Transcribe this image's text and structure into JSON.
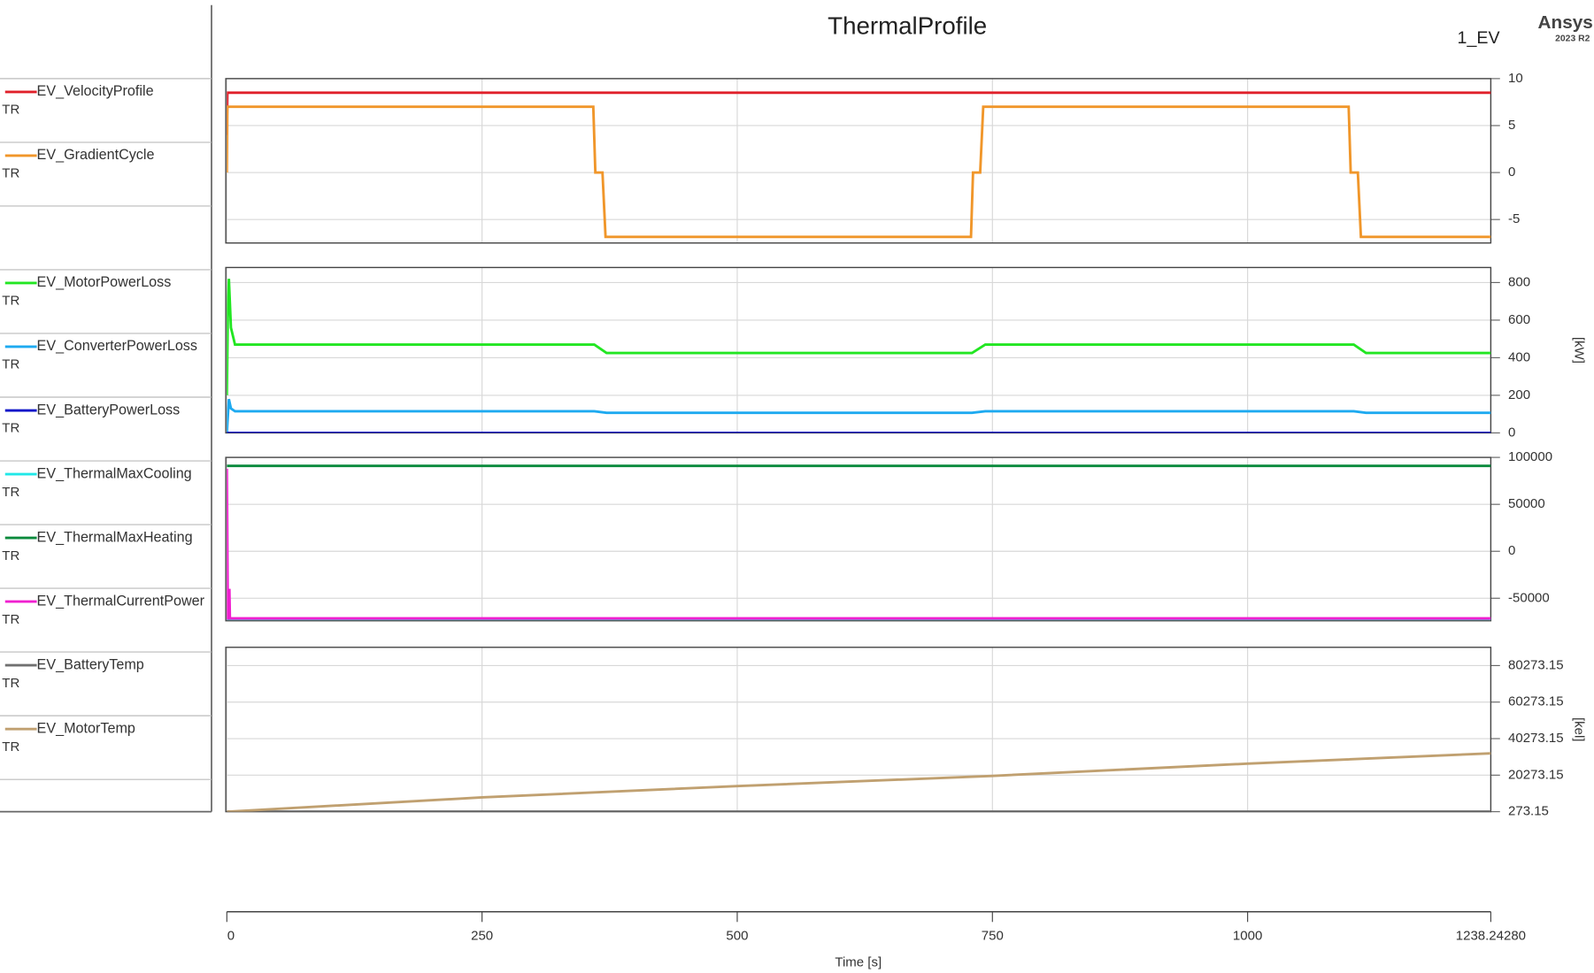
{
  "page": {
    "title": "ThermalProfile",
    "run_label": "1_EV",
    "brand": "Ansys",
    "version": "2023 R2"
  },
  "x_axis": {
    "label": "Time [s]",
    "xlim": [
      0,
      1238.2428
    ],
    "xticks": [
      0,
      250,
      500,
      750,
      1000,
      {
        "value": 1238.2428,
        "label": "1238.24280"
      }
    ]
  },
  "chart_data": [
    {
      "type": "line",
      "ylim": [
        -7.5,
        10
      ],
      "yticks": [
        10,
        5,
        0,
        -5
      ],
      "grid": true,
      "series": [
        {
          "name": "EV_VelocityProfile",
          "tag": "TR",
          "color": "#e0202a",
          "x": [
            0,
            0.5,
            1238.2428
          ],
          "values": [
            4,
            8.5,
            8.5
          ]
        },
        {
          "name": "EV_GradientCycle",
          "tag": "TR",
          "color": "#f0962a",
          "x": [
            0,
            0.5,
            359,
            361,
            368,
            371,
            729,
            731,
            738,
            741,
            1099,
            1101,
            1108,
            1111,
            1238.2428
          ],
          "values": [
            0,
            7,
            7,
            0,
            0,
            -6.85,
            -6.85,
            0,
            0,
            7,
            7,
            0,
            0,
            -6.85,
            -6.85
          ]
        }
      ]
    },
    {
      "type": "line",
      "ylim": [
        0,
        880
      ],
      "yticks": [
        800,
        600,
        400,
        200,
        0
      ],
      "ylabel": "[kW]",
      "grid": true,
      "series": [
        {
          "name": "EV_MotorPowerLoss",
          "tag": "TR",
          "color": "#22e622",
          "x": [
            0,
            1,
            2,
            4,
            8,
            360,
            372,
            730,
            743,
            1104,
            1116,
            1238.2428
          ],
          "values": [
            200,
            650,
            820,
            560,
            470,
            470,
            425,
            425,
            470,
            470,
            425,
            425
          ]
        },
        {
          "name": "EV_ConverterPowerLoss",
          "tag": "TR",
          "color": "#1eaaf0",
          "x": [
            0,
            2,
            4,
            8,
            360,
            372,
            730,
            743,
            1104,
            1116,
            1238.2428
          ],
          "values": [
            0,
            180,
            130,
            115,
            115,
            107,
            107,
            115,
            115,
            107,
            107
          ]
        },
        {
          "name": "EV_BatteryPowerLoss",
          "tag": "TR",
          "color": "#0a10c8",
          "x": [
            0,
            1238.2428
          ],
          "values": [
            0,
            0
          ]
        }
      ]
    },
    {
      "type": "line",
      "ylim": [
        -74000,
        100000
      ],
      "yticks": [
        100000,
        50000,
        0,
        -50000
      ],
      "grid": true,
      "series": [
        {
          "name": "EV_ThermalMaxCooling",
          "tag": "TR",
          "color": "#20e8e8",
          "x": [
            0,
            1238.2428
          ],
          "values": [
            -72000,
            -72000
          ]
        },
        {
          "name": "EV_ThermalMaxHeating",
          "tag": "TR",
          "color": "#0a8a3c",
          "x": [
            0,
            1238.2428
          ],
          "values": [
            91000,
            91000
          ]
        },
        {
          "name": "EV_ThermalCurrentPower",
          "tag": "TR",
          "color": "#f020d0",
          "x": [
            0,
            1,
            2,
            2.5,
            3,
            1238.2428
          ],
          "values": [
            88000,
            -71500,
            -71500,
            -40000,
            -71500,
            -71500
          ]
        }
      ]
    },
    {
      "type": "line",
      "ylim": [
        273.15,
        90273.15
      ],
      "yticks": [
        80273.15,
        60273.15,
        40273.15,
        20273.15,
        273.15
      ],
      "ylabel": "[kel]",
      "grid": true,
      "series": [
        {
          "name": "EV_BatteryTemp",
          "tag": "TR",
          "color": "#707070",
          "x": [
            0,
            1238.2428
          ],
          "values": [
            273.15,
            273.15
          ]
        },
        {
          "name": "EV_MotorTemp",
          "tag": "TR",
          "color": "#c0a070",
          "x": [
            0,
            250,
            500,
            750,
            1000,
            1238.2428
          ],
          "values": [
            273.15,
            8100,
            14270,
            19870,
            26590,
            32200
          ]
        }
      ]
    }
  ]
}
